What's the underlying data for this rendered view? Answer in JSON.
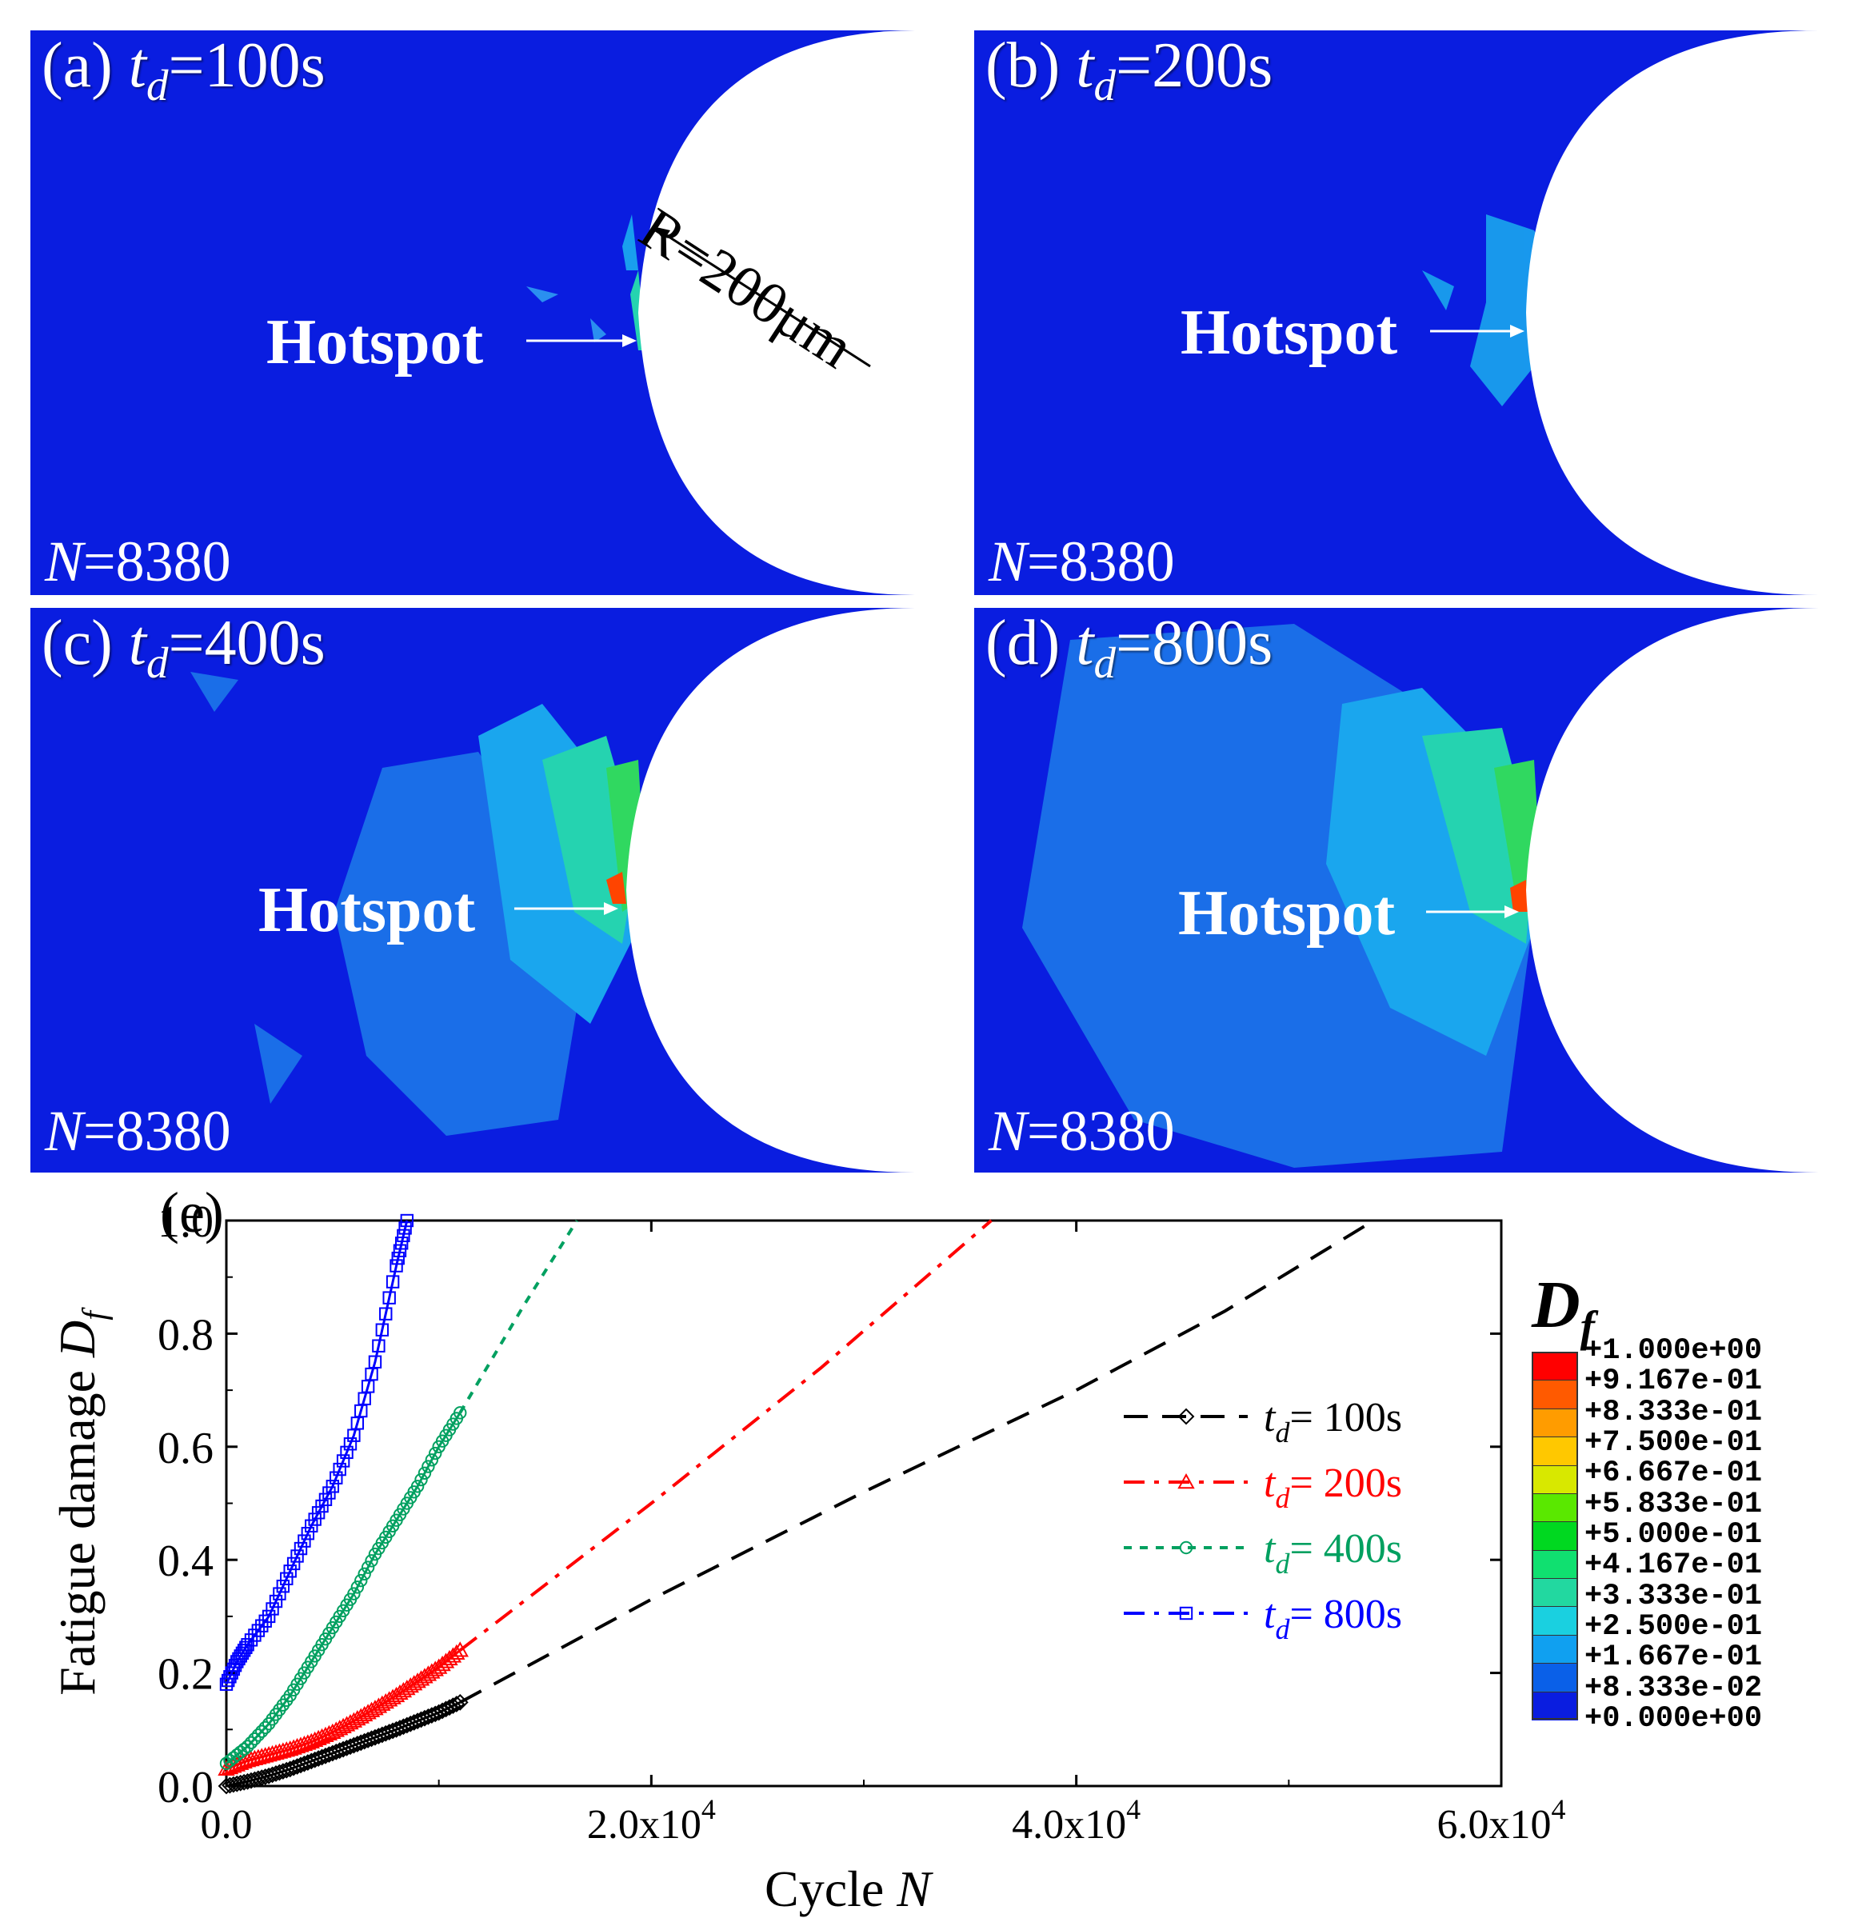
{
  "panels": [
    {
      "id": "a",
      "label_pre": "(a) ",
      "label_var": "t",
      "label_sub": "d",
      "label_post": "=100s",
      "hotspot": "Hotspot",
      "n_var": "N",
      "n_value": "=8380",
      "radius_label": "R=200μm"
    },
    {
      "id": "b",
      "label_pre": "(b) ",
      "label_var": "t",
      "label_sub": "d",
      "label_post": "=200s",
      "hotspot": "Hotspot",
      "n_var": "N",
      "n_value": "=8380"
    },
    {
      "id": "c",
      "label_pre": "(c) ",
      "label_var": "t",
      "label_sub": "d",
      "label_post": "=400s",
      "hotspot": "Hotspot",
      "n_var": "N",
      "n_value": "=8380"
    },
    {
      "id": "d",
      "label_pre": "(d) ",
      "label_var": "t",
      "label_sub": "d",
      "label_post": "=800s",
      "hotspot": "Hotspot",
      "n_var": "N",
      "n_value": "=8380"
    }
  ],
  "colorbar": {
    "title_var": "D",
    "title_sub": "f",
    "levels": [
      "+1.000e+00",
      "+9.167e-01",
      "+8.333e-01",
      "+7.500e-01",
      "+6.667e-01",
      "+5.833e-01",
      "+5.000e-01",
      "+4.167e-01",
      "+3.333e-01",
      "+2.500e-01",
      "+1.667e-01",
      "+8.333e-02",
      "+0.000e+00"
    ],
    "colors": [
      "#ff0000",
      "#ff5a00",
      "#ff9c00",
      "#ffc800",
      "#d8e800",
      "#5ae800",
      "#00d820",
      "#10e070",
      "#22d8a0",
      "#1ad0e0",
      "#10a0f0",
      "#0a60e8",
      "#0a1de0"
    ]
  },
  "chart_data": {
    "type": "line",
    "panel_label": "(e)",
    "xlabel": "Cycle",
    "xlabel_var": "N",
    "ylabel": "Fatigue damage",
    "ylabel_var": "D",
    "ylabel_sub": "f",
    "xlim": [
      0,
      60000
    ],
    "ylim": [
      0,
      1.0
    ],
    "xticks": [
      {
        "value": 0,
        "label": "0.0"
      },
      {
        "value": 20000,
        "label": "2.0x10",
        "exp": "4"
      },
      {
        "value": 40000,
        "label": "4.0x10",
        "exp": "4"
      },
      {
        "value": 60000,
        "label": "6.0x10",
        "exp": "4"
      }
    ],
    "yticks": [
      {
        "value": 0.0,
        "label": "0.0"
      },
      {
        "value": 0.2,
        "label": "0.2"
      },
      {
        "value": 0.4,
        "label": "0.4"
      },
      {
        "value": 0.6,
        "label": "0.6"
      },
      {
        "value": 0.8,
        "label": "0.8"
      },
      {
        "value": 1.0,
        "label": "1.0"
      }
    ],
    "series": [
      {
        "name": "= 100s",
        "legend_var": "t",
        "legend_sub": "d",
        "color": "#000000",
        "marker": "diamond",
        "dash": "dash",
        "markers": {
          "x": [
            0,
            1000,
            2000,
            3000,
            4000,
            5000,
            6000,
            7000,
            8000,
            9000,
            10000,
            11000
          ],
          "y": [
            0.0,
            0.008,
            0.018,
            0.03,
            0.044,
            0.058,
            0.072,
            0.086,
            0.1,
            0.115,
            0.13,
            0.148
          ]
        },
        "extrap": {
          "x": [
            11000,
            20000,
            30000,
            40000,
            47000,
            54000
          ],
          "y": [
            0.148,
            0.33,
            0.52,
            0.7,
            0.84,
            1.0
          ]
        }
      },
      {
        "name": "= 200s",
        "legend_var": "t",
        "legend_sub": "d",
        "color": "#ff0000",
        "marker": "triangle",
        "dash": "dashdot",
        "markers": {
          "x": [
            0,
            1000,
            2000,
            3000,
            4000,
            5000,
            6000,
            7000,
            8000,
            9000,
            10000,
            11000
          ],
          "y": [
            0.03,
            0.045,
            0.055,
            0.065,
            0.078,
            0.095,
            0.115,
            0.137,
            0.16,
            0.185,
            0.21,
            0.24
          ]
        },
        "extrap": {
          "x": [
            11000,
            20000,
            28000,
            36000
          ],
          "y": [
            0.24,
            0.5,
            0.74,
            1.0
          ]
        }
      },
      {
        "name": "= 400s",
        "legend_var": "t",
        "legend_sub": "d",
        "color": "#00a060",
        "marker": "circle",
        "dash": "dot",
        "markers": {
          "x": [
            0,
            1000,
            2000,
            3000,
            4000,
            5000,
            6000,
            7000,
            8000,
            9000,
            10000,
            11000
          ],
          "y": [
            0.04,
            0.07,
            0.11,
            0.16,
            0.22,
            0.28,
            0.34,
            0.41,
            0.47,
            0.53,
            0.6,
            0.66
          ]
        },
        "extrap": {
          "x": [
            11000,
            14000,
            16500
          ],
          "y": [
            0.66,
            0.85,
            1.0
          ]
        }
      },
      {
        "name": "= 800s",
        "legend_var": "t",
        "legend_sub": "d",
        "color": "#0000ff",
        "marker": "square",
        "dash": "dashdot",
        "markers": {
          "x": [
            0,
            500,
            1000,
            2000,
            3000,
            4000,
            5000,
            6000,
            7000,
            8000,
            8500
          ],
          "y": [
            0.18,
            0.22,
            0.25,
            0.3,
            0.38,
            0.46,
            0.53,
            0.62,
            0.75,
            0.92,
            1.0
          ]
        },
        "extrap": {
          "x": [
            8500,
            8500
          ],
          "y": [
            1.0,
            1.0
          ]
        }
      }
    ]
  }
}
